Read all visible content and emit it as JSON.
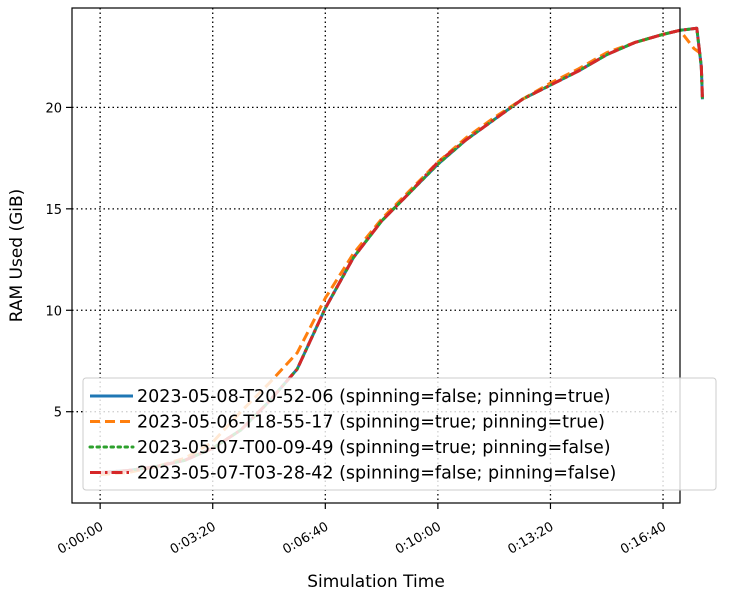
{
  "chart_data": {
    "type": "line",
    "xlabel": "Simulation Time",
    "ylabel": "RAM Used (GiB)",
    "xlim": [
      -1660,
      34200
    ],
    "ylim": [
      0.5,
      24.9
    ],
    "x_ticks": [
      0,
      200,
      400,
      600,
      800,
      1000
    ],
    "x_tick_labels": [
      "0:00:00",
      "0:03:20",
      "0:06:40",
      "0:10:00",
      "0:13:20",
      "0:16:40"
    ],
    "y_ticks": [
      5,
      10,
      15,
      20
    ],
    "y_tick_labels": [
      "5",
      "10",
      "15",
      "20"
    ],
    "grid": true,
    "legend_position": "lower right",
    "series": [
      {
        "name": "2023-05-08-T20-52-06 (spinning=false; pinning=true)",
        "color": "#1f77b4",
        "dash": "solid",
        "x": [
          0,
          50,
          100,
          150,
          200,
          250,
          300,
          350,
          400,
          450,
          500,
          550,
          600,
          650,
          700,
          750,
          800,
          850,
          900,
          950,
          1000,
          1030,
          1060,
          1068,
          1070
        ],
        "y": [
          2.0,
          2.1,
          2.3,
          2.6,
          3.2,
          4.1,
          5.5,
          7.1,
          10.1,
          12.6,
          14.4,
          15.8,
          17.2,
          18.4,
          19.4,
          20.4,
          21.1,
          21.8,
          22.6,
          23.2,
          23.6,
          23.8,
          23.9,
          22.0,
          20.4
        ]
      },
      {
        "name": "2023-05-06-T18-55-17 (spinning=true; pinning=true)",
        "color": "#ff7f0e",
        "dash": "dashed",
        "x": [
          0,
          50,
          100,
          150,
          200,
          250,
          300,
          350,
          400,
          450,
          500,
          550,
          600,
          650,
          700,
          750,
          800,
          850,
          900,
          950,
          1000,
          1030,
          1055,
          1065
        ],
        "y": [
          1.9,
          2.0,
          2.3,
          2.7,
          3.5,
          5.0,
          6.4,
          7.9,
          10.6,
          12.8,
          14.5,
          15.9,
          17.3,
          18.5,
          19.5,
          20.4,
          21.2,
          21.9,
          22.7,
          23.2,
          23.6,
          23.8,
          22.9,
          22.7
        ]
      },
      {
        "name": "2023-05-07-T00-09-49 (spinning=true; pinning=false)",
        "color": "#2ca02c",
        "dash": "dotted",
        "x": [
          0,
          50,
          100,
          150,
          200,
          250,
          300,
          350,
          400,
          450,
          500,
          550,
          600,
          650,
          700,
          750,
          800,
          850,
          900,
          950,
          1000,
          1030,
          1060,
          1068,
          1070
        ],
        "y": [
          2.0,
          2.1,
          2.3,
          2.6,
          3.2,
          4.1,
          5.5,
          7.1,
          10.1,
          12.6,
          14.4,
          15.8,
          17.2,
          18.4,
          19.4,
          20.4,
          21.1,
          21.8,
          22.6,
          23.2,
          23.6,
          23.8,
          23.9,
          22.0,
          20.4
        ]
      },
      {
        "name": "2023-05-07-T03-28-42 (spinning=false; pinning=false)",
        "color": "#d62728",
        "dash": "dashdot",
        "x": [
          0,
          50,
          100,
          150,
          200,
          250,
          300,
          350,
          400,
          450,
          500,
          550,
          600,
          650,
          700,
          750,
          800,
          850,
          900,
          950,
          1000,
          1030,
          1060,
          1068,
          1070
        ],
        "y": [
          2.0,
          2.1,
          2.3,
          2.6,
          3.2,
          4.1,
          5.5,
          7.1,
          10.1,
          12.6,
          14.4,
          15.8,
          17.3,
          18.4,
          19.4,
          20.4,
          21.1,
          21.8,
          22.6,
          23.2,
          23.6,
          23.8,
          23.9,
          22.0,
          20.4
        ]
      }
    ]
  }
}
